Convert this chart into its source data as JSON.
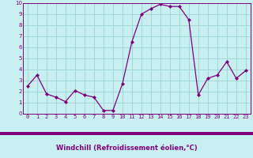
{
  "x": [
    0,
    1,
    2,
    3,
    4,
    5,
    6,
    7,
    8,
    9,
    10,
    11,
    12,
    13,
    14,
    15,
    16,
    17,
    18,
    19,
    20,
    21,
    22,
    23
  ],
  "y": [
    2.5,
    3.5,
    1.8,
    1.5,
    1.1,
    2.1,
    1.7,
    1.5,
    0.3,
    0.3,
    2.7,
    6.5,
    9.0,
    9.5,
    9.9,
    9.7,
    9.7,
    8.5,
    1.7,
    3.2,
    3.5,
    4.7,
    3.2,
    3.9
  ],
  "line_color": "#800080",
  "marker": "D",
  "marker_size": 2.0,
  "bg_color": "#c8f0f0",
  "grid_color": "#a0d8d8",
  "xlabel": "Windchill (Refroidissement éolien,°C)",
  "xlabel_color": "#800080",
  "xlim": [
    -0.5,
    23.5
  ],
  "ylim": [
    0,
    10
  ],
  "xtick_labels": [
    "0",
    "1",
    "2",
    "3",
    "4",
    "5",
    "6",
    "7",
    "8",
    "9",
    "10",
    "11",
    "12",
    "13",
    "14",
    "15",
    "16",
    "17",
    "18",
    "19",
    "20",
    "21",
    "22",
    "23"
  ],
  "yticks": [
    0,
    1,
    2,
    3,
    4,
    5,
    6,
    7,
    8,
    9,
    10
  ],
  "tick_fontsize": 5.0,
  "xlabel_fontsize": 6.0,
  "bar_color": "#800080",
  "bar_height_fig": 0.018
}
